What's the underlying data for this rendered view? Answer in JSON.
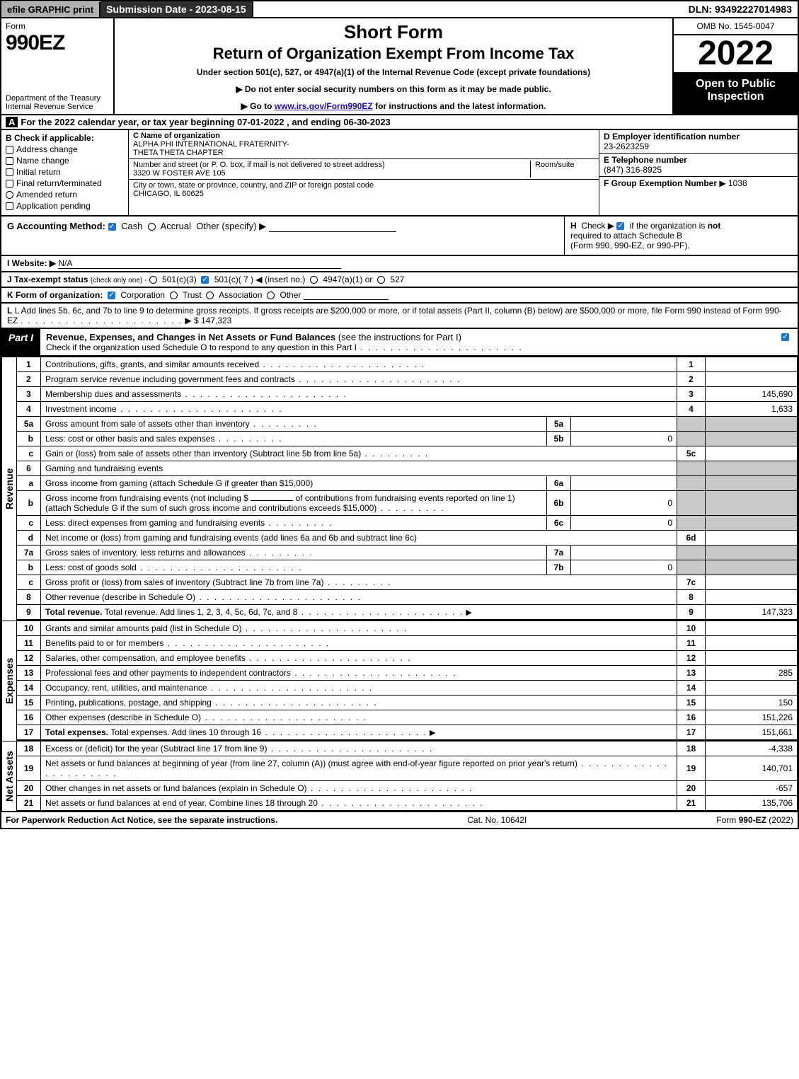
{
  "top": {
    "efile": "efile GRAPHIC print",
    "submission": "Submission Date - 2023-08-15",
    "dln": "DLN: 93492227014983"
  },
  "header": {
    "form_word": "Form",
    "form_number": "990EZ",
    "dept": "Department of the Treasury\nInternal Revenue Service",
    "short_form": "Short Form",
    "return_title": "Return of Organization Exempt From Income Tax",
    "under_section": "Under section 501(c), 527, or 4947(a)(1) of the Internal Revenue Code (except private foundations)",
    "instr1_prefix": "▶ Do not enter social security numbers on this form as it may be made public.",
    "instr2_prefix": "▶ Go to ",
    "instr2_link": "www.irs.gov/Form990EZ",
    "instr2_suffix": " for instructions and the latest information.",
    "omb": "OMB No. 1545-0047",
    "year": "2022",
    "open": "Open to Public Inspection"
  },
  "a": {
    "text": "For the 2022 calendar year, or tax year beginning 07-01-2022 , and ending 06-30-2023"
  },
  "b": {
    "header": "Check if applicable:",
    "items": [
      "Address change",
      "Name change",
      "Initial return",
      "Final return/terminated",
      "Amended return",
      "Application pending"
    ]
  },
  "c": {
    "name_lbl": "C Name of organization",
    "name": "ALPHA PHI INTERNATIONAL FRATERNITY-\nTHETA THETA CHAPTER",
    "street_lbl": "Number and street (or P. O. box, if mail is not delivered to street address)",
    "room_lbl": "Room/suite",
    "street": "3320 W FOSTER AVE 105",
    "city_lbl": "City or town, state or province, country, and ZIP or foreign postal code",
    "city": "CHICAGO, IL  60625"
  },
  "d": {
    "ein_lbl": "D Employer identification number",
    "ein": "23-2623259",
    "tel_lbl": "E Telephone number",
    "tel": "(847) 316-8925",
    "grp_lbl": "F Group Exemption Number",
    "grp": "▶ 1038"
  },
  "g": {
    "label": "G Accounting Method:",
    "cash": "Cash",
    "accrual": "Accrual",
    "other": "Other (specify) ▶"
  },
  "h": {
    "text1": "Check ▶",
    "text2": "if the organization is",
    "not": "not",
    "text3": "required to attach Schedule B",
    "text4": "(Form 990, 990-EZ, or 990-PF)."
  },
  "i": {
    "label": "I Website: ▶",
    "val": "N/A"
  },
  "j": {
    "label": "J Tax-exempt status",
    "small": "(check only one) -",
    "o1": "501(c)(3)",
    "o2": "501(c)( 7 ) ◀ (insert no.)",
    "o3": "4947(a)(1) or",
    "o4": "527"
  },
  "k": {
    "label": "K Form of organization:",
    "o1": "Corporation",
    "o2": "Trust",
    "o3": "Association",
    "o4": "Other"
  },
  "l": {
    "text": "L Add lines 5b, 6c, and 7b to line 9 to determine gross receipts. If gross receipts are $200,000 or more, or if total assets (Part II, column (B) below) are $500,000 or more, file Form 990 instead of Form 990-EZ",
    "val": "▶ $ 147,323"
  },
  "part1": {
    "label": "Part I",
    "title": "Revenue, Expenses, and Changes in Net Assets or Fund Balances",
    "title_suffix": "(see the instructions for Part I)",
    "sub": "Check if the organization used Schedule O to respond to any question in this Part I"
  },
  "lines": {
    "1": {
      "desc": "Contributions, gifts, grants, and similar amounts received",
      "val": ""
    },
    "2": {
      "desc": "Program service revenue including government fees and contracts",
      "val": ""
    },
    "3": {
      "desc": "Membership dues and assessments",
      "val": "145,690"
    },
    "4": {
      "desc": "Investment income",
      "val": "1,633"
    },
    "5a": {
      "desc": "Gross amount from sale of assets other than inventory",
      "mini": ""
    },
    "5b": {
      "desc": "Less: cost or other basis and sales expenses",
      "mini": "0"
    },
    "5c": {
      "desc": "Gain or (loss) from sale of assets other than inventory (Subtract line 5b from line 5a)",
      "val": ""
    },
    "6": {
      "desc": "Gaming and fundraising events"
    },
    "6a": {
      "desc": "Gross income from gaming (attach Schedule G if greater than $15,000)",
      "mini": ""
    },
    "6b": {
      "desc1": "Gross income from fundraising events (not including $",
      "desc2": "of contributions from fundraising events reported on line 1) (attach Schedule G if the sum of such gross income and contributions exceeds $15,000)",
      "mini": "0"
    },
    "6c": {
      "desc": "Less: direct expenses from gaming and fundraising events",
      "mini": "0"
    },
    "6d": {
      "desc": "Net income or (loss) from gaming and fundraising events (add lines 6a and 6b and subtract line 6c)",
      "val": ""
    },
    "7a": {
      "desc": "Gross sales of inventory, less returns and allowances",
      "mini": ""
    },
    "7b": {
      "desc": "Less: cost of goods sold",
      "mini": "0"
    },
    "7c": {
      "desc": "Gross profit or (loss) from sales of inventory (Subtract line 7b from line 7a)",
      "val": ""
    },
    "8": {
      "desc": "Other revenue (describe in Schedule O)",
      "val": ""
    },
    "9": {
      "desc": "Total revenue. Add lines 1, 2, 3, 4, 5c, 6d, 7c, and 8",
      "val": "147,323"
    },
    "10": {
      "desc": "Grants and similar amounts paid (list in Schedule O)",
      "val": ""
    },
    "11": {
      "desc": "Benefits paid to or for members",
      "val": ""
    },
    "12": {
      "desc": "Salaries, other compensation, and employee benefits",
      "val": ""
    },
    "13": {
      "desc": "Professional fees and other payments to independent contractors",
      "val": "285"
    },
    "14": {
      "desc": "Occupancy, rent, utilities, and maintenance",
      "val": ""
    },
    "15": {
      "desc": "Printing, publications, postage, and shipping",
      "val": "150"
    },
    "16": {
      "desc": "Other expenses (describe in Schedule O)",
      "val": "151,226"
    },
    "17": {
      "desc": "Total expenses. Add lines 10 through 16",
      "val": "151,661"
    },
    "18": {
      "desc": "Excess or (deficit) for the year (Subtract line 17 from line 9)",
      "val": "-4,338"
    },
    "19": {
      "desc": "Net assets or fund balances at beginning of year (from line 27, column (A)) (must agree with end-of-year figure reported on prior year's return)",
      "val": "140,701"
    },
    "20": {
      "desc": "Other changes in net assets or fund balances (explain in Schedule O)",
      "val": "-657"
    },
    "21": {
      "desc": "Net assets or fund balances at end of year. Combine lines 18 through 20",
      "val": "135,706"
    }
  },
  "side": {
    "revenue": "Revenue",
    "expenses": "Expenses",
    "netassets": "Net Assets"
  },
  "footer": {
    "left": "For Paperwork Reduction Act Notice, see the separate instructions.",
    "mid": "Cat. No. 10642I",
    "right_prefix": "Form ",
    "right_form": "990-EZ",
    "right_suffix": " (2022)"
  }
}
